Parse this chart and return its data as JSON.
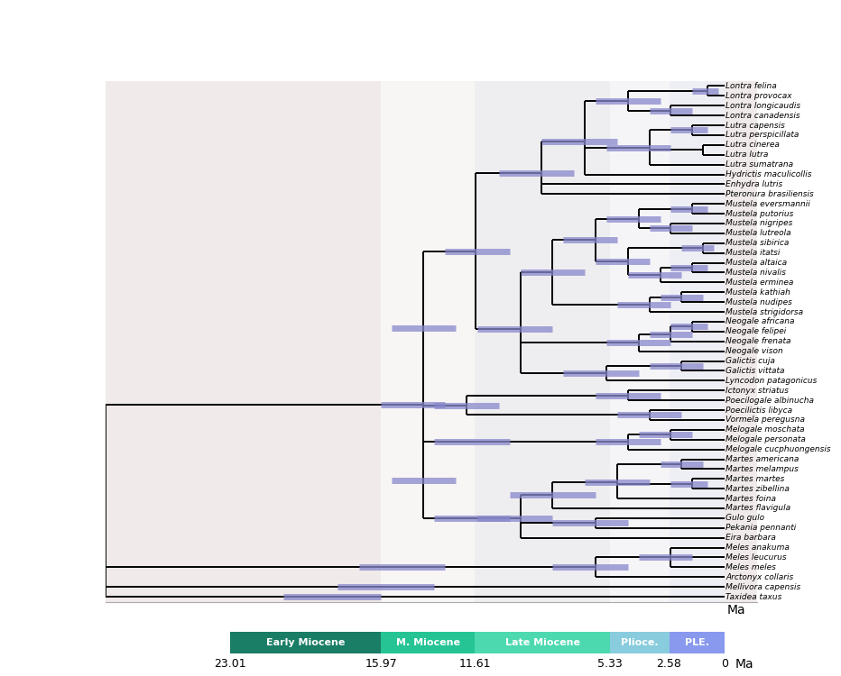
{
  "taxa": [
    "Lontra felina",
    "Lontra provocax",
    "Lontra longicaudis",
    "Lontra canadensis",
    "Lutra capensis",
    "Lutra perspicillata",
    "Lutra cinerea",
    "Lutra lutra",
    "Lutra sumatrana",
    "Hydrictis maculicollis",
    "Enhydra lutris",
    "Pteronura brasiliensis",
    "Mustela eversmannii",
    "Mustela putorius",
    "Mustela nigripes",
    "Mustela lutreola",
    "Mustela sibirica",
    "Mustela itatsi",
    "Mustela altaica",
    "Mustela nivalis",
    "Mustela erminea",
    "Mustela kathiah",
    "Mustela nudipes",
    "Mustela strigidorsa",
    "Neogale africana",
    "Neogale felipei",
    "Neogale frenata",
    "Neogale vison",
    "Galictis cuja",
    "Galictis vittata",
    "Lyncodon patagonicus",
    "Ictonyx striatus",
    "Poecilogale albinucha",
    "Poecilictis libyca",
    "Vormela peregusna",
    "Melogale moschata",
    "Melogale personata",
    "Melogale cucphuongensis",
    "Martes americana",
    "Martes melampus",
    "Martes martes",
    "Martes zibellina",
    "Martes foina",
    "Martes flavigula",
    "Gulo gulo",
    "Pekania pennanti",
    "Eira barbara",
    "Meles anakuma",
    "Meles leucurus",
    "Meles meles",
    "Arctonyx collaris",
    "Mellivora capensis",
    "Taxidea taxus"
  ],
  "epoch_boundaries": [
    23.01,
    15.97,
    11.61,
    5.33,
    2.58,
    0
  ],
  "epoch_labels": [
    "Early Miocene",
    "M. Miocene",
    "Late Miocene",
    "Plioce.",
    "PLE."
  ],
  "epoch_colors": [
    "#1a7d65",
    "#26c494",
    "#4dd9b0",
    "#88ccdd",
    "#8899ee"
  ],
  "band_colors": [
    "#f0eaea",
    "#f8f5f5",
    "#eeeef0",
    "#f5f5f8",
    "#eeeef5"
  ],
  "node_bar_color": "#8888cc",
  "line_color": "#000000",
  "line_width": 1.4,
  "taxa_fontsize": 6.5,
  "root_time": 28.8,
  "figsize": [
    9.32,
    7.5
  ]
}
